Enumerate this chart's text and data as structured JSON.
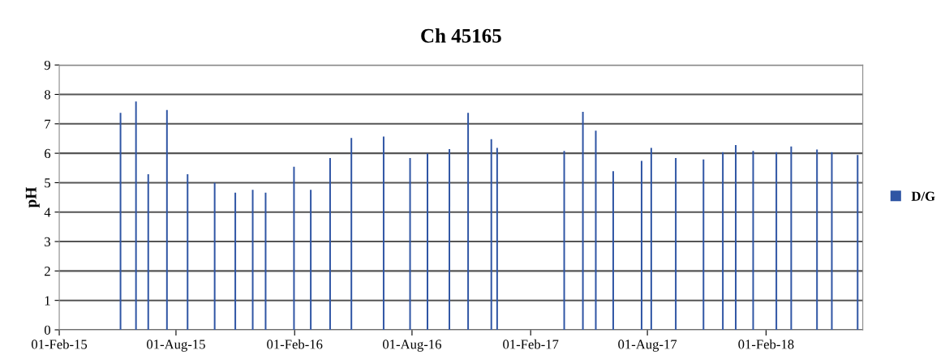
{
  "chart_data": {
    "type": "bar",
    "title": "Ch 45165",
    "ylabel": "pH",
    "x": [
      "2015-05-07",
      "2015-05-31",
      "2015-06-19",
      "2015-07-18",
      "2015-08-19",
      "2015-09-30",
      "2015-11-01",
      "2015-11-28",
      "2015-12-18",
      "2016-01-31",
      "2016-02-26",
      "2016-03-27",
      "2016-04-29",
      "2016-06-18",
      "2016-07-29",
      "2016-08-25",
      "2016-09-28",
      "2016-10-27",
      "2016-12-02",
      "2016-12-11",
      "2017-03-25",
      "2017-04-23",
      "2017-05-13",
      "2017-06-09",
      "2017-07-23",
      "2017-08-07",
      "2017-09-14",
      "2017-10-27",
      "2017-11-26",
      "2017-12-16",
      "2018-01-12",
      "2018-02-17",
      "2018-03-12",
      "2018-04-21",
      "2018-05-14",
      "2018-06-23"
    ],
    "series": [
      {
        "name": "D/G",
        "color": "#2f55a4",
        "values": [
          7.37,
          7.76,
          5.29,
          7.47,
          5.29,
          5.0,
          4.66,
          4.76,
          4.66,
          5.54,
          4.76,
          5.84,
          6.52,
          6.57,
          5.84,
          5.99,
          6.14,
          7.37,
          6.48,
          6.18,
          6.08,
          7.41,
          6.77,
          5.39,
          5.74,
          6.18,
          5.84,
          5.79,
          6.04,
          6.28,
          6.08,
          6.04,
          6.23,
          6.13,
          6.04,
          5.94
        ]
      }
    ],
    "xlim": [
      "2015-02-01",
      "2018-07-01"
    ],
    "xticks": [
      {
        "value": "2015-02-01",
        "label": "01-Feb-15"
      },
      {
        "value": "2015-08-01",
        "label": "01-Aug-15"
      },
      {
        "value": "2016-02-01",
        "label": "01-Feb-16"
      },
      {
        "value": "2016-08-01",
        "label": "01-Aug-16"
      },
      {
        "value": "2017-02-01",
        "label": "01-Feb-17"
      },
      {
        "value": "2017-08-01",
        "label": "01-Aug-17"
      },
      {
        "value": "2018-02-01",
        "label": "01-Feb-18"
      }
    ],
    "ylim": [
      0,
      9
    ],
    "yticks": [
      0,
      1,
      2,
      3,
      4,
      5,
      6,
      7,
      8,
      9
    ],
    "grid": "y",
    "legend": "right"
  }
}
